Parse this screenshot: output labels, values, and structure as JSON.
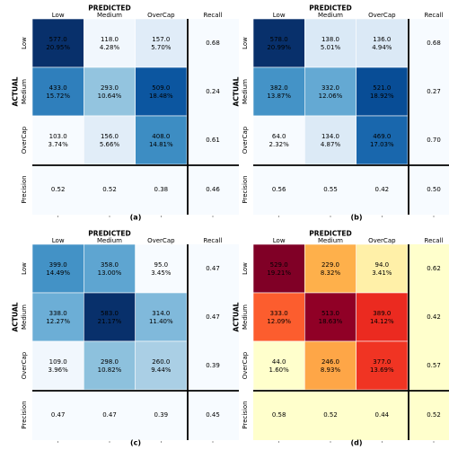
{
  "figure": {
    "panel_labels": [
      "(a)",
      "(b)",
      "(c)",
      "(d)"
    ],
    "predicted_label": "PREDICTED",
    "actual_label": "ACTUAL",
    "col_labels": [
      "Low",
      "Medium",
      "OverCap",
      "Recall"
    ],
    "row_labels": [
      "Low",
      "Medium",
      "OverCap",
      "Precision"
    ]
  },
  "chart_data": [
    {
      "type": "heatmap",
      "panel": "(a)",
      "colormap": "Blues",
      "counts": [
        [
          577.0,
          118.0,
          157.0
        ],
        [
          433.0,
          293.0,
          509.0
        ],
        [
          103.0,
          156.0,
          408.0
        ]
      ],
      "cell_text": [
        [
          "577.0\n20.95%",
          "118.0\n4.28%",
          "157.0\n5.70%"
        ],
        [
          "433.0\n15.72%",
          "293.0\n10.64%",
          "509.0\n18.48%"
        ],
        [
          "103.0\n3.74%",
          "156.0\n5.66%",
          "408.0\n14.81%"
        ]
      ],
      "recall": [
        "0.68",
        "0.24",
        "0.61"
      ],
      "precision": [
        "0.52",
        "0.52",
        "0.38"
      ],
      "overall": "0.46"
    },
    {
      "type": "heatmap",
      "panel": "(b)",
      "colormap": "Blues",
      "counts": [
        [
          578.0,
          138.0,
          136.0
        ],
        [
          382.0,
          332.0,
          521.0
        ],
        [
          64.0,
          134.0,
          469.0
        ]
      ],
      "cell_text": [
        [
          "578.0\n20.99%",
          "138.0\n5.01%",
          "136.0\n4.94%"
        ],
        [
          "382.0\n13.87%",
          "332.0\n12.06%",
          "521.0\n18.92%"
        ],
        [
          "64.0\n2.32%",
          "134.0\n4.87%",
          "469.0\n17.03%"
        ]
      ],
      "recall": [
        "0.68",
        "0.27",
        "0.70"
      ],
      "precision": [
        "0.56",
        "0.55",
        "0.42"
      ],
      "overall": "0.50"
    },
    {
      "type": "heatmap",
      "panel": "(c)",
      "colormap": "Blues",
      "counts": [
        [
          399.0,
          358.0,
          95.0
        ],
        [
          338.0,
          583.0,
          314.0
        ],
        [
          109.0,
          298.0,
          260.0
        ]
      ],
      "cell_text": [
        [
          "399.0\n14.49%",
          "358.0\n13.00%",
          "95.0\n3.45%"
        ],
        [
          "338.0\n12.27%",
          "583.0\n21.17%",
          "314.0\n11.40%"
        ],
        [
          "109.0\n3.96%",
          "298.0\n10.82%",
          "260.0\n9.44%"
        ]
      ],
      "recall": [
        "0.47",
        "0.47",
        "0.39"
      ],
      "precision": [
        "0.47",
        "0.47",
        "0.39"
      ],
      "overall": "0.45"
    },
    {
      "type": "heatmap",
      "panel": "(d)",
      "colormap": "YlOrRd",
      "counts": [
        [
          529.0,
          229.0,
          94.0
        ],
        [
          333.0,
          513.0,
          389.0
        ],
        [
          44.0,
          246.0,
          377.0
        ]
      ],
      "cell_text": [
        [
          "529.0\n19.21%",
          "229.0\n8.32%",
          "94.0\n3.41%"
        ],
        [
          "333.0\n12.09%",
          "513.0\n18.63%",
          "389.0\n14.12%"
        ],
        [
          "44.0\n1.60%",
          "246.0\n8.93%",
          "377.0\n13.69%"
        ]
      ],
      "recall": [
        "0.62",
        "0.42",
        "0.57"
      ],
      "precision": [
        "0.58",
        "0.52",
        "0.44"
      ],
      "overall": "0.52"
    }
  ]
}
